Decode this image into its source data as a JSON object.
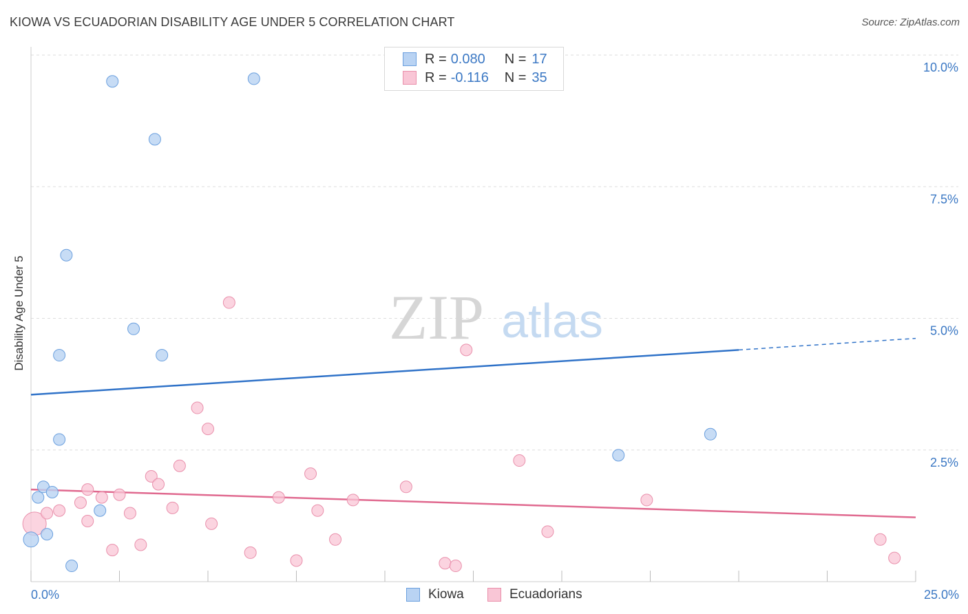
{
  "title": "KIOWA VS ECUADORIAN DISABILITY AGE UNDER 5 CORRELATION CHART",
  "source": "Source: ZipAtlas.com",
  "watermark": {
    "zip": "ZIP",
    "atlas": "atlas"
  },
  "legend": {
    "rows": [
      {
        "r_label": "R =",
        "r_value": "0.080",
        "n_label": "N =",
        "n_value": "17"
      },
      {
        "r_label": "R =",
        "r_value": "-0.116",
        "n_label": "N =",
        "n_value": "35"
      }
    ]
  },
  "bottom_legend": {
    "kiowa": "Kiowa",
    "ecuadorians": "Ecuadorians"
  },
  "colors": {
    "kiowa_fill": "#b9d3f3",
    "kiowa_stroke": "#6a9fde",
    "kiowa_line": "#2f72c8",
    "ecu_fill": "#f9c6d6",
    "ecu_stroke": "#e98fab",
    "ecu_line": "#e0698f",
    "axis_label": "#3b78c4",
    "grid": "#dddddd"
  },
  "chart_data": {
    "type": "scatter",
    "title": "KIOWA VS ECUADORIAN DISABILITY AGE UNDER 5 CORRELATION CHART",
    "xlabel": "",
    "ylabel": "Disability Age Under 5",
    "xlim": [
      0,
      25
    ],
    "ylim": [
      0,
      10
    ],
    "x_tick_labels": [
      "0.0%",
      "25.0%"
    ],
    "y_ticks": [
      2.5,
      5.0,
      7.5,
      10.0
    ],
    "y_tick_labels": [
      "2.5%",
      "5.0%",
      "7.5%",
      "10.0%"
    ],
    "grid": true,
    "legend_position": "top-center",
    "series": [
      {
        "name": "Kiowa",
        "points": [
          [
            0.0,
            0.8
          ],
          [
            0.2,
            1.6
          ],
          [
            0.35,
            1.8
          ],
          [
            0.45,
            0.9
          ],
          [
            0.6,
            1.7
          ],
          [
            0.8,
            4.3
          ],
          [
            0.8,
            2.7
          ],
          [
            1.0,
            6.2
          ],
          [
            1.15,
            0.3
          ],
          [
            1.95,
            1.35
          ],
          [
            2.3,
            9.5
          ],
          [
            2.9,
            4.8
          ],
          [
            3.5,
            8.4
          ],
          [
            3.7,
            4.3
          ],
          [
            6.3,
            9.55
          ],
          [
            16.6,
            2.4
          ],
          [
            19.2,
            2.8
          ]
        ],
        "trend": {
          "x_start": 0,
          "y_start": 3.55,
          "x_end": 20,
          "y_end": 4.4,
          "dashed_to_x": 25,
          "dashed_to_y": 4.62
        }
      },
      {
        "name": "Ecuadorians",
        "points": [
          [
            0.1,
            1.1
          ],
          [
            0.45,
            1.3
          ],
          [
            0.8,
            1.35
          ],
          [
            1.6,
            1.75
          ],
          [
            1.4,
            1.5
          ],
          [
            1.6,
            1.15
          ],
          [
            2.0,
            1.6
          ],
          [
            2.3,
            0.6
          ],
          [
            2.5,
            1.65
          ],
          [
            2.8,
            1.3
          ],
          [
            3.1,
            0.7
          ],
          [
            3.4,
            2.0
          ],
          [
            3.6,
            1.85
          ],
          [
            4.0,
            1.4
          ],
          [
            4.2,
            2.2
          ],
          [
            4.7,
            3.3
          ],
          [
            5.0,
            2.9
          ],
          [
            5.1,
            1.1
          ],
          [
            5.6,
            5.3
          ],
          [
            6.2,
            0.55
          ],
          [
            7.0,
            1.6
          ],
          [
            7.5,
            0.4
          ],
          [
            7.9,
            2.05
          ],
          [
            8.1,
            1.35
          ],
          [
            8.6,
            0.8
          ],
          [
            9.1,
            1.55
          ],
          [
            10.6,
            1.8
          ],
          [
            11.7,
            0.35
          ],
          [
            12.0,
            0.3
          ],
          [
            12.3,
            4.4
          ],
          [
            13.8,
            2.3
          ],
          [
            14.6,
            0.95
          ],
          [
            17.4,
            1.55
          ],
          [
            24.0,
            0.8
          ],
          [
            24.4,
            0.45
          ]
        ],
        "trend": {
          "x_start": 0,
          "y_start": 1.75,
          "x_end": 25,
          "y_end": 1.22
        }
      }
    ]
  }
}
